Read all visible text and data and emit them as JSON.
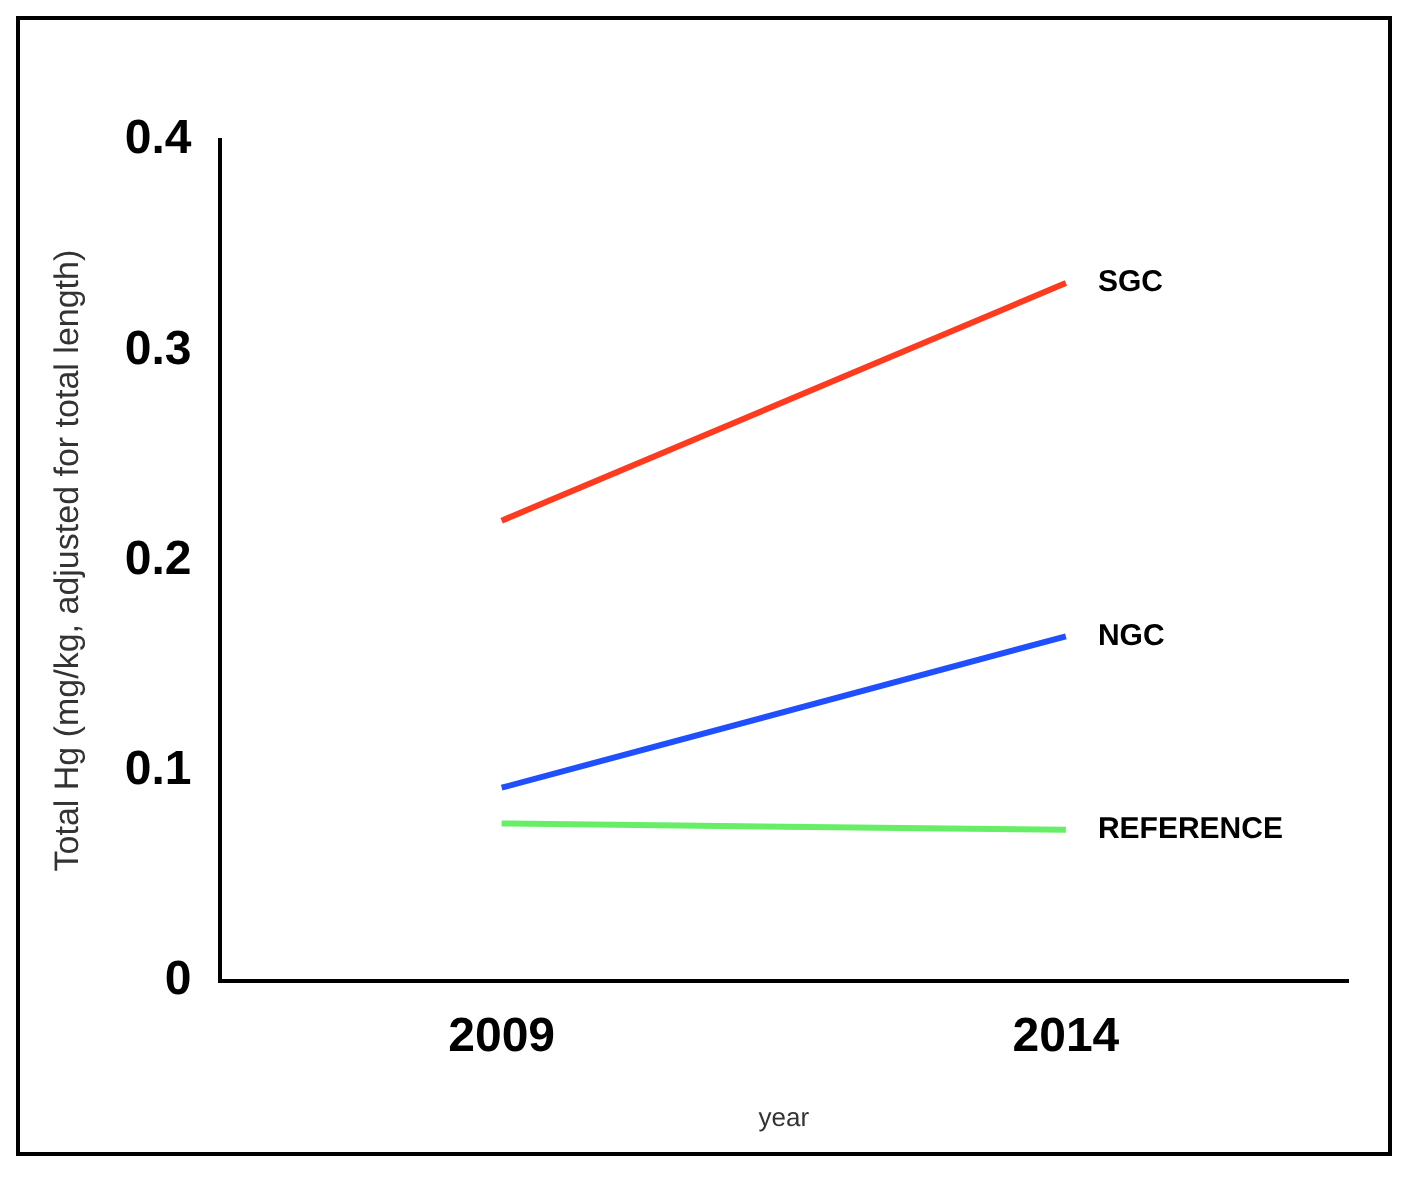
{
  "chart_data": {
    "type": "line",
    "xlabel": "year",
    "ylabel": "Total Hg (mg/kg, adjusted for total length)",
    "categories": [
      "2009",
      "2014"
    ],
    "series": [
      {
        "name": "SGC",
        "color": "#ff3b1f",
        "values": [
          0.219,
          0.332
        ]
      },
      {
        "name": "NGC",
        "color": "#1f4fff",
        "values": [
          0.092,
          0.164
        ]
      },
      {
        "name": "REFERENCE",
        "color": "#66ee66",
        "values": [
          0.075,
          0.072
        ]
      }
    ],
    "ylim": [
      0,
      0.4
    ],
    "yticks": [
      0,
      0.1,
      0.2,
      0.3,
      0.4
    ],
    "grid": false,
    "legend": false,
    "marker": "none",
    "line_style": "solid"
  }
}
